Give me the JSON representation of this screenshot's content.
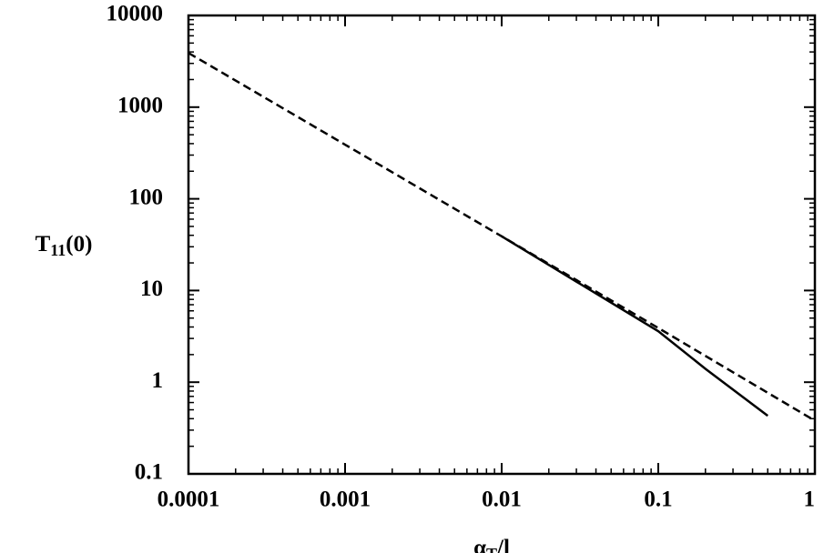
{
  "chart_data": {
    "type": "line",
    "xlabel": {
      "main": "α",
      "sub": "T",
      "tail": "/l"
    },
    "ylabel": {
      "main": "T",
      "sub": "11",
      "tail": "(0)"
    },
    "x_log": true,
    "y_log": true,
    "xlim": [
      0.0001,
      1
    ],
    "ylim": [
      0.1,
      10000
    ],
    "xticks": [
      0.0001,
      0.001,
      0.01,
      0.1,
      1
    ],
    "yticks": [
      0.1,
      1,
      10,
      100,
      1000,
      10000
    ],
    "series": [
      {
        "color": "#000000",
        "dash": true,
        "x": [
          0.0001,
          0.001,
          0.01,
          0.1,
          1
        ],
        "values": [
          3900,
          390,
          39,
          3.9,
          0.38
        ]
      },
      {
        "color": "#000000",
        "dash": false,
        "x": [
          0.01,
          0.03,
          0.1,
          0.2,
          0.5
        ],
        "values": [
          39,
          12.5,
          3.6,
          1.4,
          0.43
        ]
      }
    ]
  }
}
